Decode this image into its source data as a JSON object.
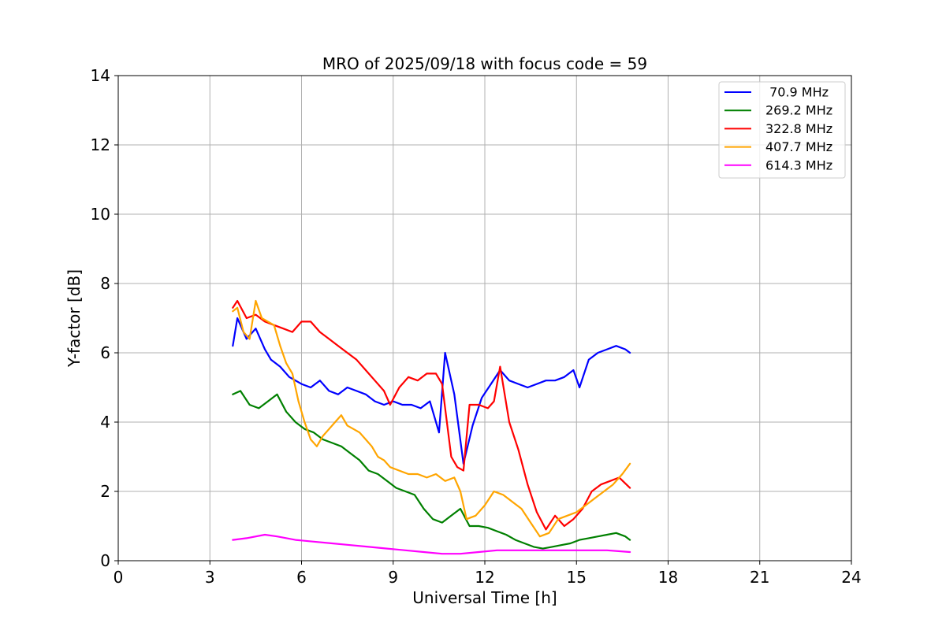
{
  "chart_data": {
    "type": "line",
    "title": "MRO of 2025/09/18 with focus code = 59",
    "xlabel": "Universal Time [h]",
    "ylabel": "Y-factor [dB]",
    "xlim": [
      0,
      24
    ],
    "ylim": [
      0,
      14
    ],
    "xticks": [
      0,
      3,
      6,
      9,
      12,
      15,
      18,
      21,
      24
    ],
    "yticks": [
      0,
      2,
      4,
      6,
      8,
      10,
      12,
      14
    ],
    "grid": true,
    "legend_position": "top-right",
    "series": [
      {
        "name": " 70.9 MHz",
        "color": "#0000ff",
        "x": [
          3.75,
          3.9,
          4.2,
          4.5,
          4.8,
          5.0,
          5.3,
          5.6,
          6.0,
          6.3,
          6.6,
          6.9,
          7.2,
          7.5,
          7.8,
          8.1,
          8.4,
          8.7,
          9.0,
          9.3,
          9.6,
          9.9,
          10.2,
          10.5,
          10.7,
          11.0,
          11.3,
          11.6,
          11.9,
          12.2,
          12.5,
          12.8,
          13.1,
          13.4,
          13.7,
          14.0,
          14.3,
          14.6,
          14.9,
          15.1,
          15.4,
          15.7,
          16.0,
          16.3,
          16.6,
          16.75
        ],
        "y": [
          6.2,
          7.0,
          6.4,
          6.7,
          6.1,
          5.8,
          5.6,
          5.3,
          5.1,
          5.0,
          5.2,
          4.9,
          4.8,
          5.0,
          4.9,
          4.8,
          4.6,
          4.5,
          4.6,
          4.5,
          4.5,
          4.4,
          4.6,
          3.7,
          6.0,
          4.8,
          2.8,
          3.9,
          4.7,
          5.1,
          5.5,
          5.2,
          5.1,
          5.0,
          5.1,
          5.2,
          5.2,
          5.3,
          5.5,
          5.0,
          5.8,
          6.0,
          6.1,
          6.2,
          6.1,
          6.0
        ]
      },
      {
        "name": "269.2 MHz",
        "color": "#008000",
        "x": [
          3.75,
          4.0,
          4.3,
          4.6,
          4.9,
          5.2,
          5.5,
          5.8,
          6.1,
          6.4,
          6.7,
          7.0,
          7.3,
          7.6,
          7.9,
          8.2,
          8.5,
          8.8,
          9.1,
          9.4,
          9.7,
          10.0,
          10.3,
          10.6,
          10.9,
          11.2,
          11.5,
          11.8,
          12.1,
          12.4,
          12.7,
          13.0,
          13.3,
          13.6,
          13.9,
          14.2,
          14.5,
          14.8,
          15.1,
          15.4,
          15.7,
          16.0,
          16.3,
          16.6,
          16.75
        ],
        "y": [
          4.8,
          4.9,
          4.5,
          4.4,
          4.6,
          4.8,
          4.3,
          4.0,
          3.8,
          3.7,
          3.5,
          3.4,
          3.3,
          3.1,
          2.9,
          2.6,
          2.5,
          2.3,
          2.1,
          2.0,
          1.9,
          1.5,
          1.2,
          1.1,
          1.3,
          1.5,
          1.0,
          1.0,
          0.95,
          0.85,
          0.75,
          0.6,
          0.5,
          0.4,
          0.35,
          0.4,
          0.45,
          0.5,
          0.6,
          0.65,
          0.7,
          0.75,
          0.8,
          0.7,
          0.6
        ]
      },
      {
        "name": "322.8 MHz",
        "color": "#ff0000",
        "x": [
          3.75,
          3.9,
          4.2,
          4.5,
          4.8,
          5.1,
          5.4,
          5.7,
          6.0,
          6.3,
          6.6,
          6.9,
          7.2,
          7.5,
          7.8,
          8.1,
          8.4,
          8.7,
          8.9,
          9.2,
          9.5,
          9.8,
          10.1,
          10.4,
          10.6,
          10.9,
          11.1,
          11.3,
          11.5,
          11.8,
          12.1,
          12.3,
          12.5,
          12.8,
          13.1,
          13.4,
          13.7,
          14.0,
          14.3,
          14.6,
          14.9,
          15.2,
          15.5,
          15.8,
          16.1,
          16.4,
          16.75
        ],
        "y": [
          7.3,
          7.5,
          7.0,
          7.1,
          6.9,
          6.8,
          6.7,
          6.6,
          6.9,
          6.9,
          6.6,
          6.4,
          6.2,
          6.0,
          5.8,
          5.5,
          5.2,
          4.9,
          4.5,
          5.0,
          5.3,
          5.2,
          5.4,
          5.4,
          5.1,
          3.0,
          2.7,
          2.6,
          4.5,
          4.5,
          4.4,
          4.6,
          5.6,
          4.0,
          3.2,
          2.2,
          1.4,
          0.9,
          1.3,
          1.0,
          1.2,
          1.5,
          2.0,
          2.2,
          2.3,
          2.4,
          2.1
        ]
      },
      {
        "name": "407.7 MHz",
        "color": "#ffa500",
        "x": [
          3.75,
          3.9,
          4.1,
          4.3,
          4.5,
          4.7,
          4.9,
          5.1,
          5.3,
          5.5,
          5.7,
          5.9,
          6.1,
          6.3,
          6.5,
          6.7,
          6.9,
          7.1,
          7.3,
          7.5,
          7.7,
          7.9,
          8.1,
          8.3,
          8.5,
          8.7,
          8.9,
          9.2,
          9.5,
          9.8,
          10.1,
          10.4,
          10.7,
          11.0,
          11.2,
          11.4,
          11.7,
          12.0,
          12.3,
          12.6,
          12.9,
          13.2,
          13.5,
          13.8,
          14.1,
          14.4,
          14.7,
          15.0,
          15.3,
          15.6,
          15.9,
          16.2,
          16.5,
          16.75
        ],
        "y": [
          7.2,
          7.3,
          6.6,
          6.4,
          7.5,
          7.0,
          6.9,
          6.8,
          6.2,
          5.7,
          5.4,
          4.6,
          4.0,
          3.5,
          3.3,
          3.6,
          3.8,
          4.0,
          4.2,
          3.9,
          3.8,
          3.7,
          3.5,
          3.3,
          3.0,
          2.9,
          2.7,
          2.6,
          2.5,
          2.5,
          2.4,
          2.5,
          2.3,
          2.4,
          2.0,
          1.2,
          1.3,
          1.6,
          2.0,
          1.9,
          1.7,
          1.5,
          1.1,
          0.7,
          0.8,
          1.2,
          1.3,
          1.4,
          1.6,
          1.8,
          2.0,
          2.2,
          2.5,
          2.8
        ]
      },
      {
        "name": "614.3 MHz",
        "color": "#ff00ff",
        "x": [
          3.75,
          4.2,
          4.8,
          5.2,
          5.8,
          6.4,
          7.0,
          7.6,
          8.2,
          8.8,
          9.4,
          10.0,
          10.6,
          11.2,
          11.8,
          12.4,
          13.0,
          13.6,
          14.2,
          14.8,
          15.4,
          16.0,
          16.75
        ],
        "y": [
          0.6,
          0.65,
          0.75,
          0.7,
          0.6,
          0.55,
          0.5,
          0.45,
          0.4,
          0.35,
          0.3,
          0.25,
          0.2,
          0.2,
          0.25,
          0.3,
          0.3,
          0.3,
          0.3,
          0.3,
          0.3,
          0.3,
          0.25
        ]
      }
    ]
  }
}
